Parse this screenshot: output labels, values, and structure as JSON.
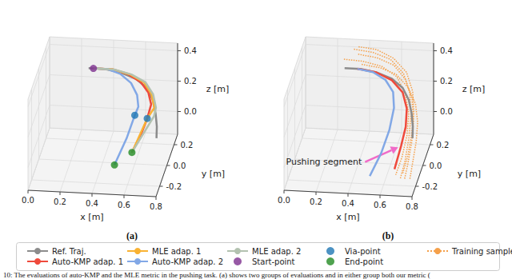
{
  "chart_data": [
    {
      "type": "line3d",
      "title": "(a)",
      "grid": true,
      "legend": "bottom",
      "x_label": "x [m]",
      "y_label": "y [m]",
      "z_label": "z [m]",
      "xlim": [
        0,
        0.8
      ],
      "ylim": [
        -0.3,
        0.3
      ],
      "zlim": [
        -0.15,
        0.45
      ],
      "xticks": [
        {
          "value": 0,
          "label": "0.0"
        },
        0.2,
        0.4,
        0.6,
        0.8
      ],
      "yticks": [
        -0.2,
        {
          "value": 0,
          "label": "0.0"
        },
        0.2
      ],
      "zticks": [
        {
          "value": 0,
          "label": "0.0"
        },
        0.2,
        0.4
      ],
      "series": [
        {
          "name": "Ref. Traj.",
          "type": "line",
          "color": "#8c8c8c",
          "line_style": "solid",
          "values": [
            [
              0.3,
              0.05,
              0.43
            ],
            [
              0.4,
              0.05,
              0.43
            ],
            [
              0.5,
              0.04,
              0.42
            ],
            [
              0.6,
              0.03,
              0.39
            ],
            [
              0.67,
              0.02,
              0.34
            ],
            [
              0.71,
              0.01,
              0.27
            ],
            [
              0.73,
              0.0,
              0.19
            ],
            [
              0.74,
              -0.01,
              0.11
            ],
            [
              0.74,
              -0.02,
              0.04
            ]
          ]
        },
        {
          "name": "Auto-KMP adap. 1",
          "type": "line",
          "color": "#ef4a3c",
          "line_style": "solid",
          "values": [
            [
              0.33,
              0.05,
              0.43
            ],
            [
              0.45,
              0.05,
              0.43
            ],
            [
              0.55,
              0.04,
              0.41
            ],
            [
              0.63,
              0.03,
              0.37
            ],
            [
              0.68,
              0.02,
              0.31
            ],
            [
              0.7,
              0.01,
              0.24
            ],
            [
              0.68,
              -0.01,
              0.16
            ],
            [
              0.65,
              -0.04,
              0.08
            ],
            [
              0.6,
              -0.08,
              -0.02
            ]
          ]
        },
        {
          "name": "MLE adap. 1",
          "type": "line",
          "color": "#f9b233",
          "line_style": "solid",
          "values": [
            [
              0.33,
              0.05,
              0.43
            ],
            [
              0.45,
              0.05,
              0.43
            ],
            [
              0.56,
              0.04,
              0.41
            ],
            [
              0.65,
              0.03,
              0.37
            ],
            [
              0.7,
              0.02,
              0.3
            ],
            [
              0.72,
              0.01,
              0.22
            ],
            [
              0.68,
              -0.01,
              0.16
            ],
            [
              0.6,
              -0.08,
              -0.02
            ]
          ]
        },
        {
          "name": "Auto-KMP adap. 2",
          "type": "line",
          "color": "#82a8e6",
          "line_style": "solid",
          "values": [
            [
              0.33,
              0.05,
              0.43
            ],
            [
              0.42,
              0.05,
              0.43
            ],
            [
              0.5,
              0.04,
              0.41
            ],
            [
              0.57,
              0.03,
              0.36
            ],
            [
              0.61,
              0.02,
              0.29
            ],
            [
              0.62,
              0.01,
              0.22
            ],
            [
              0.6,
              0.0,
              0.17
            ],
            [
              0.56,
              -0.05,
              0.05
            ],
            [
              0.5,
              -0.12,
              -0.08
            ]
          ]
        },
        {
          "name": "MLE adap. 2",
          "type": "line",
          "color": "#b3c2b0",
          "line_style": "solid",
          "values": [
            [
              0.33,
              0.05,
              0.43
            ],
            [
              0.46,
              0.05,
              0.43
            ],
            [
              0.57,
              0.04,
              0.41
            ],
            [
              0.66,
              0.03,
              0.37
            ],
            [
              0.71,
              0.02,
              0.3
            ],
            [
              0.73,
              0.01,
              0.22
            ],
            [
              0.72,
              0.0,
              0.17
            ],
            [
              0.6,
              -0.08,
              -0.02
            ]
          ]
        },
        {
          "name": "Start-point",
          "type": "scatter",
          "marker": "circle",
          "color": "#7d2f8e",
          "values": [
            [
              0.33,
              0.05,
              0.43
            ]
          ]
        },
        {
          "name": "Via-point",
          "type": "scatter",
          "marker": "circle",
          "color": "#1f77b4",
          "values": [
            [
              0.6,
              0.0,
              0.17
            ],
            [
              0.68,
              -0.01,
              0.16
            ]
          ]
        },
        {
          "name": "End-point",
          "type": "scatter",
          "marker": "circle",
          "color": "#238b23",
          "values": [
            [
              0.5,
              -0.12,
              -0.08
            ],
            [
              0.6,
              -0.08,
              -0.02
            ]
          ]
        }
      ]
    },
    {
      "type": "line3d",
      "title": "(b)",
      "grid": true,
      "legend": "bottom",
      "x_label": "x [m]",
      "y_label": "y [m]",
      "z_label": "z [m]",
      "xlim": [
        0,
        0.8
      ],
      "ylim": [
        -0.3,
        0.3
      ],
      "zlim": [
        -0.15,
        0.45
      ],
      "xticks": [
        {
          "value": 0,
          "label": "0.0"
        },
        0.2,
        0.4,
        0.6,
        0.8
      ],
      "yticks": [
        -0.2,
        {
          "value": 0,
          "label": "0.0"
        },
        0.2
      ],
      "zticks": [
        {
          "value": 0,
          "label": "0.0"
        },
        0.2,
        0.4
      ],
      "annotations": [
        {
          "text": "Pushing segment",
          "at": [
            0.68,
            -0.07,
            0.02
          ]
        }
      ],
      "series": [
        {
          "name": "Training samples",
          "type": "line",
          "color": "#f5a04a",
          "line_style": "dotted",
          "values": [
            [
              0.32,
              0.22,
              0.44
            ],
            [
              0.44,
              0.2,
              0.44
            ],
            [
              0.56,
              0.17,
              0.42
            ],
            [
              0.65,
              0.13,
              0.36
            ],
            [
              0.7,
              0.08,
              0.27
            ],
            [
              0.72,
              0.03,
              0.16
            ],
            [
              0.72,
              -0.03,
              0.05
            ],
            [
              0.71,
              -0.09,
              -0.06
            ],
            [
              0.69,
              -0.14,
              -0.15
            ]
          ]
        },
        {
          "name": "Training samples",
          "type": "line",
          "color": "#f5a04a",
          "line_style": "dotted",
          "values": [
            [
              0.36,
              0.16,
              0.45
            ],
            [
              0.48,
              0.15,
              0.44
            ],
            [
              0.59,
              0.13,
              0.41
            ],
            [
              0.67,
              0.1,
              0.34
            ],
            [
              0.72,
              0.06,
              0.24
            ],
            [
              0.74,
              0.01,
              0.13
            ],
            [
              0.74,
              -0.04,
              0.03
            ],
            [
              0.73,
              -0.1,
              -0.07
            ],
            [
              0.72,
              -0.15,
              -0.14
            ]
          ]
        },
        {
          "name": "Training samples",
          "type": "line",
          "color": "#f5a04a",
          "line_style": "dotted",
          "values": [
            [
              0.28,
              0.12,
              0.44
            ],
            [
              0.4,
              0.11,
              0.44
            ],
            [
              0.52,
              0.1,
              0.42
            ],
            [
              0.62,
              0.08,
              0.37
            ],
            [
              0.68,
              0.05,
              0.28
            ],
            [
              0.71,
              0.01,
              0.18
            ],
            [
              0.71,
              -0.04,
              0.07
            ],
            [
              0.69,
              -0.09,
              -0.04
            ],
            [
              0.66,
              -0.13,
              -0.13
            ]
          ]
        },
        {
          "name": "Training samples",
          "type": "line",
          "color": "#f5a04a",
          "line_style": "dotted",
          "values": [
            [
              0.4,
              0.08,
              0.44
            ],
            [
              0.52,
              0.07,
              0.43
            ],
            [
              0.62,
              0.06,
              0.4
            ],
            [
              0.7,
              0.04,
              0.33
            ],
            [
              0.75,
              0.02,
              0.24
            ],
            [
              0.77,
              -0.01,
              0.14
            ],
            [
              0.77,
              -0.05,
              0.04
            ],
            [
              0.76,
              -0.1,
              -0.06
            ],
            [
              0.75,
              -0.14,
              -0.15
            ]
          ]
        },
        {
          "name": "Training samples",
          "type": "line",
          "color": "#f5a04a",
          "line_style": "dotted",
          "values": [
            [
              0.34,
              0.26,
              0.43
            ],
            [
              0.46,
              0.24,
              0.43
            ],
            [
              0.57,
              0.21,
              0.4
            ],
            [
              0.66,
              0.17,
              0.34
            ],
            [
              0.71,
              0.12,
              0.25
            ],
            [
              0.73,
              0.06,
              0.15
            ],
            [
              0.73,
              0.0,
              0.05
            ],
            [
              0.72,
              -0.06,
              -0.05
            ],
            [
              0.7,
              -0.11,
              -0.13
            ]
          ]
        },
        {
          "name": "Ref. Traj.",
          "type": "line",
          "color": "#8c8c8c",
          "line_style": "solid",
          "values": [
            [
              0.3,
              0.05,
              0.43
            ],
            [
              0.4,
              0.05,
              0.43
            ],
            [
              0.5,
              0.04,
              0.42
            ],
            [
              0.6,
              0.03,
              0.39
            ],
            [
              0.67,
              0.02,
              0.34
            ],
            [
              0.71,
              0.01,
              0.27
            ],
            [
              0.73,
              0.0,
              0.19
            ],
            [
              0.74,
              -0.01,
              0.11
            ],
            [
              0.74,
              -0.02,
              0.04
            ]
          ]
        },
        {
          "name": "Auto-KMP adap. 1",
          "type": "line",
          "color": "#ef4a3c",
          "line_style": "solid",
          "values": [
            [
              0.38,
              0.05,
              0.43
            ],
            [
              0.5,
              0.04,
              0.42
            ],
            [
              0.6,
              0.03,
              0.38
            ],
            [
              0.67,
              0.02,
              0.31
            ],
            [
              0.7,
              0.0,
              0.22
            ],
            [
              0.7,
              -0.03,
              0.12
            ],
            [
              0.68,
              -0.07,
              0.02
            ],
            [
              0.65,
              -0.12,
              -0.1
            ]
          ]
        },
        {
          "name": "Auto-KMP adap. 2",
          "type": "line",
          "color": "#82a8e6",
          "line_style": "solid",
          "values": [
            [
              0.38,
              0.05,
              0.43
            ],
            [
              0.48,
              0.04,
              0.42
            ],
            [
              0.56,
              0.03,
              0.38
            ],
            [
              0.61,
              0.02,
              0.31
            ],
            [
              0.62,
              0.0,
              0.22
            ],
            [
              0.6,
              -0.04,
              0.1
            ],
            [
              0.56,
              -0.09,
              -0.02
            ],
            [
              0.5,
              -0.14,
              -0.14
            ]
          ]
        }
      ]
    }
  ],
  "caption": "10: The evaluations of auto-KMP and the MLE metric in the pushing task. (a) shows two groups of evaluations and in either group both our metric ("
}
